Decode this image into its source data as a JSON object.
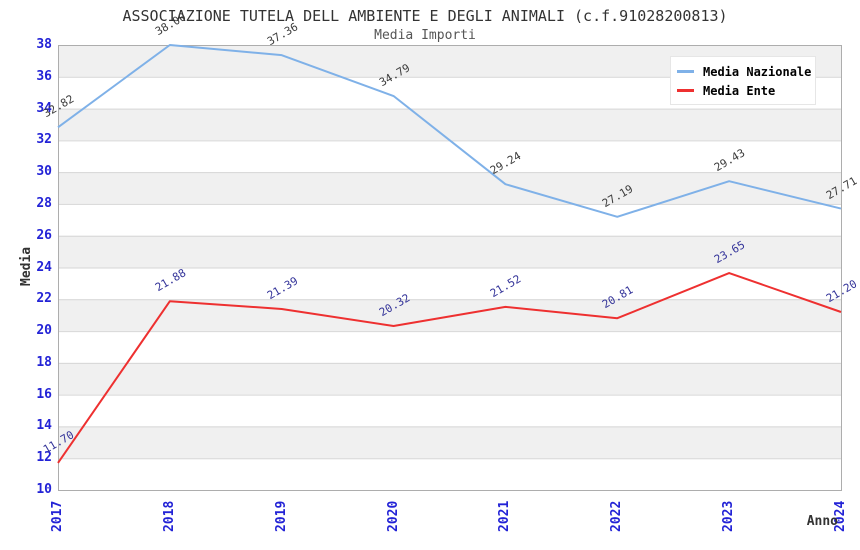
{
  "header": {
    "title": "ASSOCIAZIONE TUTELA DELL AMBIENTE E DEGLI ANIMALI (c.f.91028200813)",
    "subtitle": "Media Importi"
  },
  "axes": {
    "y_label": "Media",
    "x_label": "Anno",
    "y_ticks": [
      "10",
      "12",
      "14",
      "16",
      "18",
      "20",
      "22",
      "24",
      "26",
      "28",
      "30",
      "32",
      "34",
      "36",
      "38"
    ],
    "x_ticks": [
      "2017",
      "2018",
      "2019",
      "2020",
      "2021",
      "2022",
      "2023",
      "2024"
    ]
  },
  "legend": {
    "items": [
      {
        "label": "Media Nazionale",
        "color": "#7fb1e8"
      },
      {
        "label": "Media Ente",
        "color": "#ee3030"
      }
    ],
    "position": "top-right"
  },
  "colors": {
    "background": "#ffffff",
    "band": "#f0f0f0",
    "gridline": "#d6d6d6",
    "plot_border": "#adadad",
    "tick_label": "#2323d6",
    "title": "#333333",
    "subtitle": "#555555",
    "national_line": "#7fb1e8",
    "entity_line": "#ee3030",
    "national_point_label": "#3c3c3c",
    "entity_point_label": "#333399"
  },
  "chart_data": {
    "type": "line",
    "title": "ASSOCIAZIONE TUTELA DELL AMBIENTE E DEGLI ANIMALI (c.f.91028200813)",
    "subtitle": "Media Importi",
    "xlabel": "Anno",
    "ylabel": "Media",
    "categories": [
      "2017",
      "2018",
      "2019",
      "2020",
      "2021",
      "2022",
      "2023",
      "2024"
    ],
    "series": [
      {
        "name": "Media Nazionale",
        "color": "#7fb1e8",
        "label_color": "#3c3c3c",
        "values": [
          32.82,
          38.0,
          37.36,
          34.79,
          29.24,
          27.19,
          29.43,
          27.71
        ],
        "labels": [
          "32.82",
          "38.00",
          "37.36",
          "34.79",
          "29.24",
          "27.19",
          "29.43",
          "27.71"
        ]
      },
      {
        "name": "Media Ente",
        "color": "#ee3030",
        "label_color": "#333399",
        "values": [
          11.7,
          21.88,
          21.39,
          20.32,
          21.52,
          20.81,
          23.65,
          21.2
        ],
        "labels": [
          "11.70",
          "21.88",
          "21.39",
          "20.32",
          "21.52",
          "20.81",
          "23.65",
          "21.20"
        ]
      }
    ],
    "ylim": [
      10,
      38
    ],
    "y_tick_step": 2,
    "grid": true,
    "bands": "alternating-gray",
    "legend_position": "top-right"
  }
}
